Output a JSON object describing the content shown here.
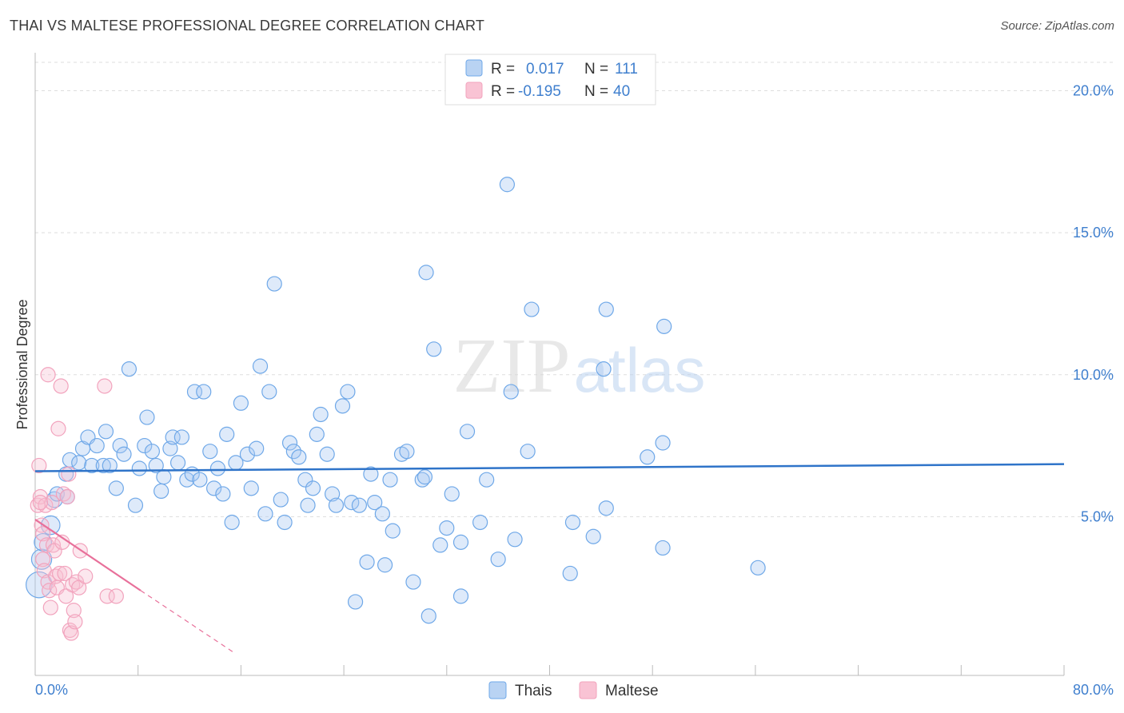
{
  "title": "THAI VS MALTESE PROFESSIONAL DEGREE CORRELATION CHART",
  "source": "Source: ZipAtlas.com",
  "colors": {
    "blue": "#6fa8e8",
    "blue_line": "#2f74c9",
    "pink": "#f2a3bd",
    "pink_line": "#e8709a",
    "axis_text": "#3f7fce"
  },
  "chart_data": {
    "type": "scatter",
    "title": "THAI VS MALTESE PROFESSIONAL DEGREE CORRELATION CHART",
    "xlabel": "",
    "ylabel": "Professional Degree",
    "xlim": [
      0,
      80
    ],
    "ylim": [
      0,
      21
    ],
    "x_tick_labels": [
      "0.0%",
      "80.0%"
    ],
    "y_ticks": [
      5,
      10,
      15,
      20
    ],
    "y_tick_labels": [
      "5.0%",
      "10.0%",
      "15.0%",
      "20.0%"
    ],
    "grid": true,
    "legend": [
      {
        "name": "Thais",
        "r_label": "R =",
        "r_value": "0.017",
        "n_label": "N =",
        "n_value": "111"
      },
      {
        "name": "Maltese",
        "r_label": "R =",
        "r_value": "-0.195",
        "n_label": "N =",
        "n_value": "40"
      }
    ],
    "watermark": "ZIPatlas",
    "series": [
      {
        "name": "Thais",
        "color": "#6fa8e8",
        "trend": {
          "x0": 0,
          "y0": 6.6,
          "x1": 80,
          "y1": 6.85
        },
        "points": [
          [
            0.3,
            2.6,
            1.8
          ],
          [
            0.5,
            3.5,
            1.4
          ],
          [
            0.6,
            4.1,
            1.2
          ],
          [
            1.2,
            4.7,
            1.3
          ],
          [
            1.5,
            5.6,
            1.1
          ],
          [
            1.7,
            5.8,
            1
          ],
          [
            2.5,
            5.7,
            1
          ],
          [
            2.4,
            6.5,
            1
          ],
          [
            2.7,
            7.0,
            1
          ],
          [
            3.4,
            6.9,
            1
          ],
          [
            3.7,
            7.4,
            1
          ],
          [
            4.1,
            7.8,
            1
          ],
          [
            4.4,
            6.8,
            1
          ],
          [
            4.8,
            7.5,
            1
          ],
          [
            5.3,
            6.8,
            1
          ],
          [
            5.5,
            8.0,
            1
          ],
          [
            5.8,
            6.8,
            1
          ],
          [
            6.3,
            6.0,
            1
          ],
          [
            6.6,
            7.5,
            1
          ],
          [
            6.9,
            7.2,
            1
          ],
          [
            7.3,
            10.2,
            1
          ],
          [
            7.8,
            5.4,
            1
          ],
          [
            8.1,
            6.7,
            1
          ],
          [
            8.5,
            7.5,
            1
          ],
          [
            8.7,
            8.5,
            1
          ],
          [
            9.1,
            7.3,
            1
          ],
          [
            9.4,
            6.8,
            1
          ],
          [
            9.8,
            5.9,
            1
          ],
          [
            10.0,
            6.4,
            1
          ],
          [
            10.5,
            7.4,
            1
          ],
          [
            10.7,
            7.8,
            1
          ],
          [
            11.1,
            6.9,
            1
          ],
          [
            11.4,
            7.8,
            1
          ],
          [
            11.8,
            6.3,
            1
          ],
          [
            12.2,
            6.5,
            1
          ],
          [
            12.4,
            9.4,
            1
          ],
          [
            12.8,
            6.3,
            1
          ],
          [
            13.1,
            9.4,
            1
          ],
          [
            13.6,
            7.3,
            1
          ],
          [
            13.9,
            6.0,
            1
          ],
          [
            14.2,
            6.7,
            1
          ],
          [
            14.6,
            5.8,
            1
          ],
          [
            14.9,
            7.9,
            1
          ],
          [
            15.3,
            4.8,
            1
          ],
          [
            15.6,
            6.9,
            1
          ],
          [
            16.0,
            9.0,
            1
          ],
          [
            16.5,
            7.2,
            1
          ],
          [
            16.8,
            6.0,
            1
          ],
          [
            17.2,
            7.4,
            1
          ],
          [
            17.5,
            10.3,
            1
          ],
          [
            17.9,
            5.1,
            1
          ],
          [
            18.2,
            9.4,
            1
          ],
          [
            18.6,
            13.2,
            1
          ],
          [
            19.1,
            5.6,
            1
          ],
          [
            19.4,
            4.8,
            1
          ],
          [
            19.8,
            7.6,
            1
          ],
          [
            20.1,
            7.3,
            1
          ],
          [
            20.5,
            7.1,
            1
          ],
          [
            21.0,
            6.3,
            1
          ],
          [
            21.2,
            5.4,
            1
          ],
          [
            21.6,
            6.0,
            1
          ],
          [
            21.9,
            7.9,
            1
          ],
          [
            22.2,
            8.6,
            1
          ],
          [
            22.7,
            7.2,
            1
          ],
          [
            23.1,
            5.8,
            1
          ],
          [
            23.4,
            5.4,
            1
          ],
          [
            23.9,
            8.9,
            1
          ],
          [
            24.3,
            9.4,
            1
          ],
          [
            24.6,
            5.5,
            1
          ],
          [
            25.2,
            5.4,
            1
          ],
          [
            24.9,
            2.0,
            1
          ],
          [
            25.8,
            3.4,
            1
          ],
          [
            26.1,
            6.5,
            1
          ],
          [
            26.4,
            5.5,
            1
          ],
          [
            27.0,
            5.1,
            1
          ],
          [
            27.2,
            3.3,
            1
          ],
          [
            27.6,
            6.3,
            1
          ],
          [
            27.8,
            4.5,
            1
          ],
          [
            28.5,
            7.2,
            1
          ],
          [
            28.9,
            7.3,
            1
          ],
          [
            29.4,
            2.7,
            1
          ],
          [
            30.1,
            6.3,
            1
          ],
          [
            30.3,
            6.4,
            1
          ],
          [
            30.4,
            13.6,
            1
          ],
          [
            30.6,
            1.5,
            1
          ],
          [
            31.0,
            10.9,
            1
          ],
          [
            31.5,
            4.0,
            1
          ],
          [
            32.0,
            4.6,
            1
          ],
          [
            32.4,
            5.8,
            1
          ],
          [
            33.1,
            4.1,
            1
          ],
          [
            33.6,
            8.0,
            1
          ],
          [
            33.1,
            2.2,
            1
          ],
          [
            34.6,
            4.8,
            1
          ],
          [
            35.1,
            6.3,
            1
          ],
          [
            36.0,
            3.5,
            1
          ],
          [
            36.7,
            16.7,
            1
          ],
          [
            37.0,
            9.4,
            1
          ],
          [
            37.3,
            4.2,
            1
          ],
          [
            38.3,
            7.3,
            1
          ],
          [
            38.6,
            12.3,
            1
          ],
          [
            41.8,
            4.8,
            1
          ],
          [
            43.4,
            4.3,
            1
          ],
          [
            44.4,
            12.3,
            1
          ],
          [
            44.4,
            5.3,
            1
          ],
          [
            44.2,
            10.2,
            1
          ],
          [
            47.6,
            7.1,
            1
          ],
          [
            48.9,
            11.7,
            1
          ],
          [
            48.8,
            7.6,
            1
          ],
          [
            56.2,
            3.2,
            1
          ],
          [
            41.6,
            3.0,
            1
          ],
          [
            48.8,
            3.9,
            1
          ]
        ]
      },
      {
        "name": "Maltese",
        "color": "#f2a3bd",
        "trend": {
          "x0": 0,
          "y0": 4.9,
          "x1": 8.2,
          "y1": 2.4,
          "dash_to_x": 15.5,
          "dash_to_y": 0.2
        },
        "points": [
          [
            0.2,
            5.4,
            1
          ],
          [
            0.3,
            6.8,
            1
          ],
          [
            0.4,
            5.7,
            1
          ],
          [
            0.5,
            4.7,
            1
          ],
          [
            0.6,
            4.4,
            1
          ],
          [
            0.6,
            3.5,
            1
          ],
          [
            0.7,
            3.1,
            1
          ],
          [
            0.8,
            5.4,
            1
          ],
          [
            0.9,
            4.0,
            1
          ],
          [
            1.0,
            2.7,
            1
          ],
          [
            1.1,
            2.4,
            1
          ],
          [
            1.2,
            1.8,
            1
          ],
          [
            1.3,
            5.5,
            1
          ],
          [
            1.4,
            4.0,
            1
          ],
          [
            1.5,
            3.8,
            1
          ],
          [
            1.6,
            2.9,
            1
          ],
          [
            1.7,
            2.5,
            1
          ],
          [
            1.8,
            8.1,
            1
          ],
          [
            1.9,
            3.0,
            1
          ],
          [
            2.0,
            9.6,
            1
          ],
          [
            2.1,
            4.1,
            1
          ],
          [
            2.2,
            5.8,
            1
          ],
          [
            2.3,
            3.0,
            1
          ],
          [
            2.4,
            2.2,
            1
          ],
          [
            2.5,
            5.7,
            1
          ],
          [
            2.6,
            6.5,
            1
          ],
          [
            2.7,
            1.0,
            1
          ],
          [
            2.8,
            0.9,
            1
          ],
          [
            2.9,
            2.6,
            1
          ],
          [
            3.0,
            1.7,
            1
          ],
          [
            3.1,
            1.3,
            1
          ],
          [
            3.2,
            2.7,
            1
          ],
          [
            3.4,
            2.5,
            1
          ],
          [
            3.5,
            3.8,
            1
          ],
          [
            3.9,
            2.9,
            1
          ],
          [
            5.4,
            9.6,
            1
          ],
          [
            5.6,
            2.2,
            1
          ],
          [
            6.3,
            2.2,
            1
          ],
          [
            1.0,
            10.0,
            1
          ],
          [
            0.4,
            5.5,
            1
          ]
        ]
      }
    ]
  }
}
